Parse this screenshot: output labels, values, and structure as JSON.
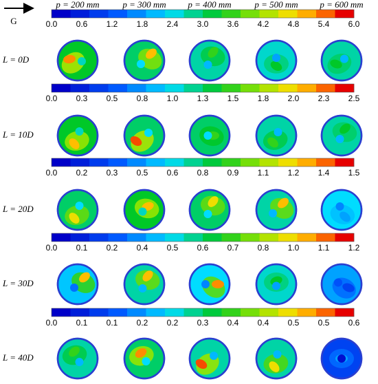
{
  "flow_label": "G",
  "columns": [
    "p = 200 mm",
    "p = 300 mm",
    "p = 400 mm",
    "p = 500 mm",
    "p = 600 mm"
  ],
  "rows": [
    {
      "label": "L = 0D",
      "colorbar": [
        "0.0",
        "0.6",
        "1.2",
        "1.8",
        "2.4",
        "3.0",
        "3.6",
        "4.2",
        "4.8",
        "5.4",
        "6.0"
      ]
    },
    {
      "label": "L = 10D",
      "colorbar": [
        "0.0",
        "0.3",
        "0.5",
        "0.8",
        "1.0",
        "1.3",
        "1.5",
        "1.8",
        "2.0",
        "2.3",
        "2.5"
      ]
    },
    {
      "label": "L = 20D",
      "colorbar": [
        "0.0",
        "0.2",
        "0.3",
        "0.5",
        "0.6",
        "0.8",
        "0.9",
        "1.1",
        "1.2",
        "1.4",
        "1.5"
      ]
    },
    {
      "label": "L = 30D",
      "colorbar": [
        "0.0",
        "0.1",
        "0.2",
        "0.4",
        "0.5",
        "0.6",
        "0.7",
        "0.8",
        "1.0",
        "1.1",
        "1.2"
      ]
    },
    {
      "label": "L = 40D",
      "colorbar": [
        "0.0",
        "0.1",
        "0.1",
        "0.2",
        "0.2",
        "0.3",
        "0.4",
        "0.4",
        "0.5",
        "0.5",
        "0.6"
      ]
    }
  ]
}
